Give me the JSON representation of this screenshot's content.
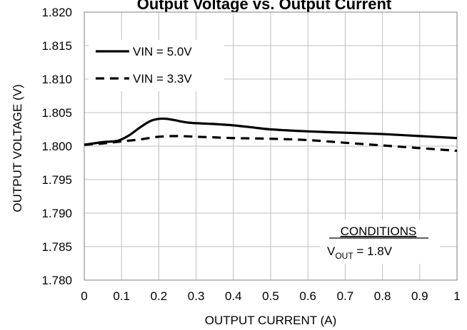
{
  "chart_data": {
    "type": "line",
    "title": "Output Voltage vs. Output Current",
    "xlabel": "OUTPUT  CURRENT (A)",
    "ylabel": "OUTPUT  VOLTAGE (V)",
    "xlim": [
      0,
      1
    ],
    "ylim": [
      1.78,
      1.82
    ],
    "xticks": [
      "0",
      "0.1",
      "0.2",
      "0.3",
      "0.4",
      "0.5",
      "0.6",
      "0.7",
      "0.8",
      "0.9",
      "1"
    ],
    "yticks": [
      "1.780",
      "1.785",
      "1.790",
      "1.795",
      "1.800",
      "1.805",
      "1.810",
      "1.815",
      "1.820"
    ],
    "grid": true,
    "legend_position": "top-left",
    "series": [
      {
        "name": "VIN = 5.0V",
        "style": "solid",
        "color": "#000000",
        "x": [
          0,
          0.05,
          0.09,
          0.12,
          0.15,
          0.18,
          0.21,
          0.24,
          0.28,
          0.35,
          0.4,
          0.45,
          0.5,
          0.6,
          0.7,
          0.8,
          0.9,
          1.0
        ],
        "y": [
          1.8002,
          1.8006,
          1.8008,
          1.8016,
          1.8028,
          1.8038,
          1.8041,
          1.8039,
          1.8035,
          1.8033,
          1.8031,
          1.8028,
          1.8025,
          1.8022,
          1.802,
          1.8018,
          1.8015,
          1.8012
        ]
      },
      {
        "name": "VIN = 3.3V",
        "style": "dashed",
        "color": "#000000",
        "x": [
          0,
          0.05,
          0.1,
          0.15,
          0.2,
          0.25,
          0.3,
          0.35,
          0.4,
          0.5,
          0.6,
          0.7,
          0.8,
          0.9,
          1.0
        ],
        "y": [
          1.8002,
          1.8004,
          1.8007,
          1.801,
          1.8014,
          1.8015,
          1.8014,
          1.8013,
          1.8012,
          1.8011,
          1.8009,
          1.8005,
          1.8001,
          1.7997,
          1.7993
        ]
      }
    ],
    "annotation": {
      "heading": "CONDITIONS",
      "v_main": "V",
      "v_sub": "OUT",
      "v_rest": " = 1.8V"
    }
  }
}
